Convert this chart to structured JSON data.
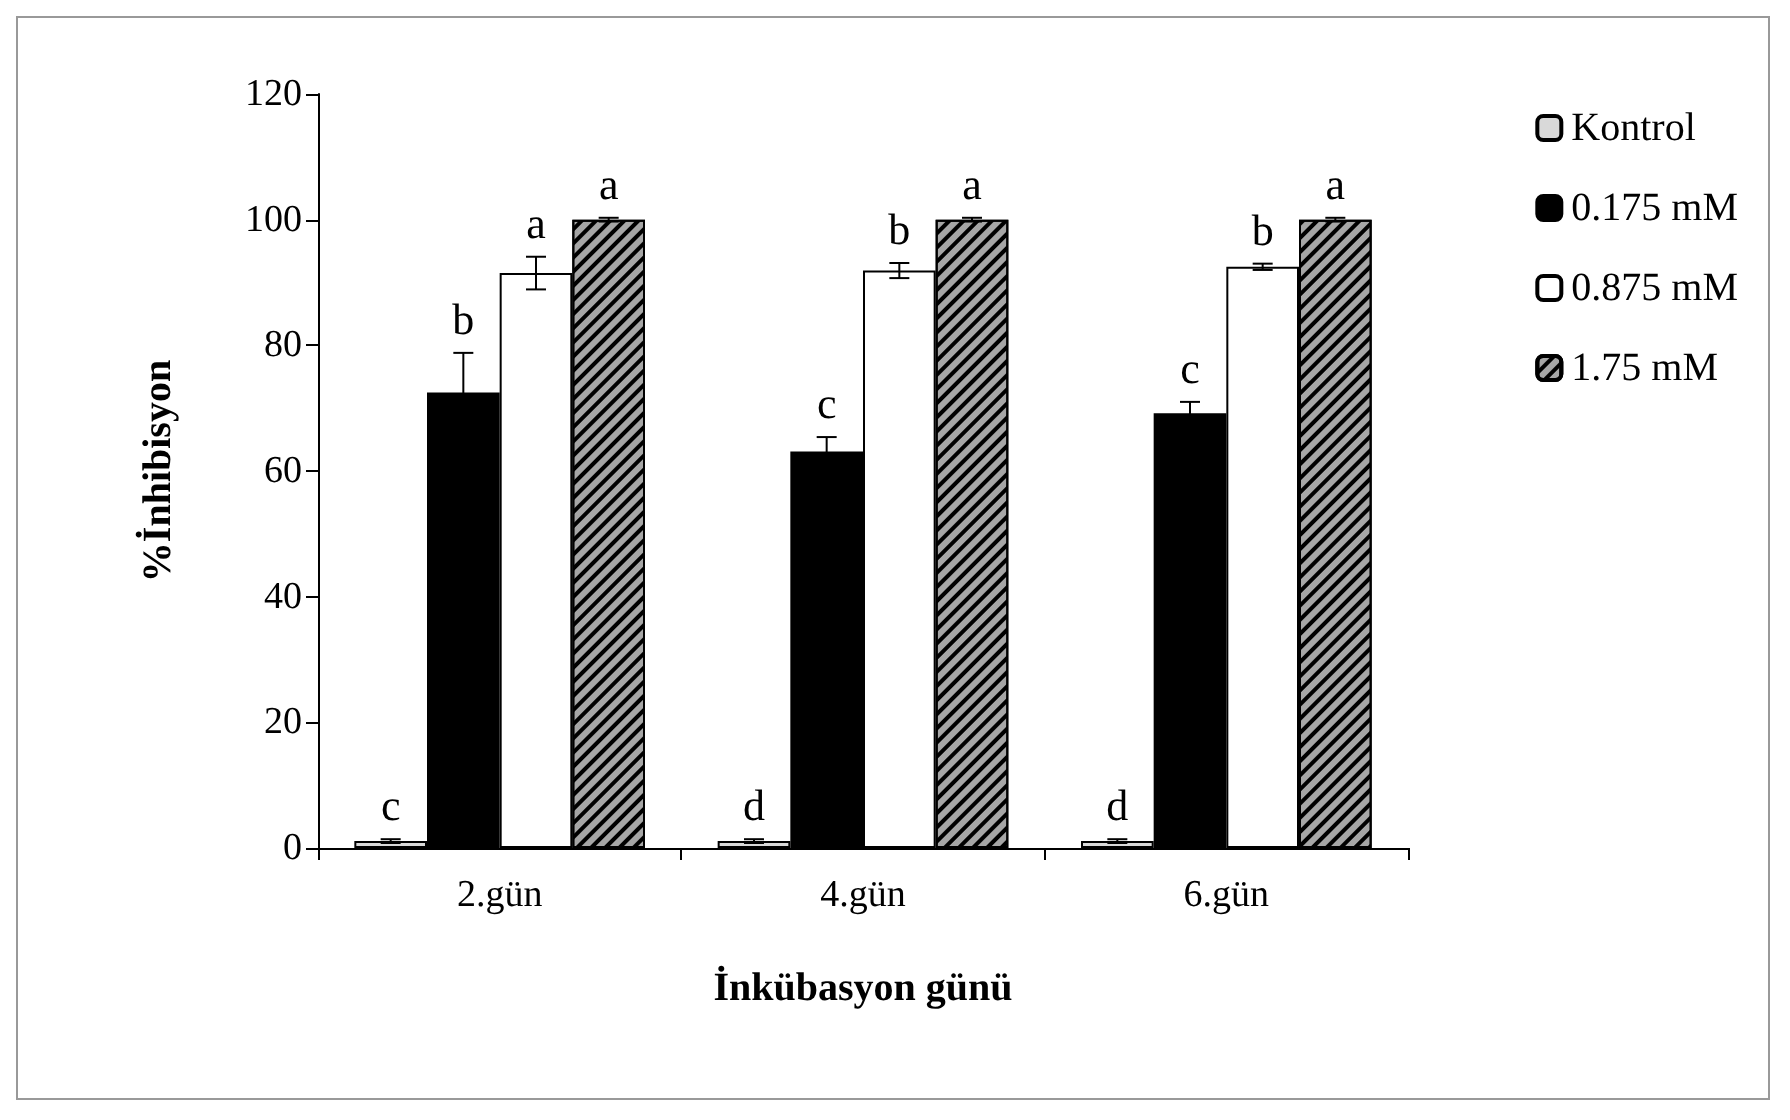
{
  "chart_data": {
    "type": "bar",
    "xlabel": "İnkübasyon günü",
    "ylabel": "%İnhibisyon",
    "categories": [
      "2.gün",
      "4.gün",
      "6.gün"
    ],
    "series": [
      {
        "name": "Kontrol",
        "color": "#d9d9d9",
        "values": [
          1.1,
          1.1,
          1.1
        ],
        "errors": [
          0.3,
          0.3,
          0.3
        ],
        "value_labels": [
          "c",
          "d",
          "d"
        ]
      },
      {
        "name": "0.175 mM",
        "color": "#000000",
        "values": [
          72.5,
          63.1,
          69.2
        ],
        "errors": [
          6.3,
          2.3,
          1.8
        ],
        "value_labels": [
          "b",
          "c",
          "c"
        ]
      },
      {
        "name": "0.875 mM",
        "color": "#ffffff",
        "values": [
          91.5,
          91.9,
          92.5
        ],
        "errors": [
          2.6,
          1.2,
          0.5
        ],
        "value_labels": [
          "a",
          "b",
          "b"
        ]
      },
      {
        "name": "1.75 mM",
        "color": "#a6a6a6",
        "values": [
          100,
          100,
          100
        ],
        "errors": [
          0.3,
          0.3,
          0.3
        ],
        "value_labels": [
          "a",
          "a",
          "a"
        ]
      }
    ],
    "ylim": [
      0,
      120
    ],
    "yticks": [
      0,
      20,
      40,
      60,
      80,
      100,
      120
    ],
    "grid": false,
    "legend": "right"
  }
}
